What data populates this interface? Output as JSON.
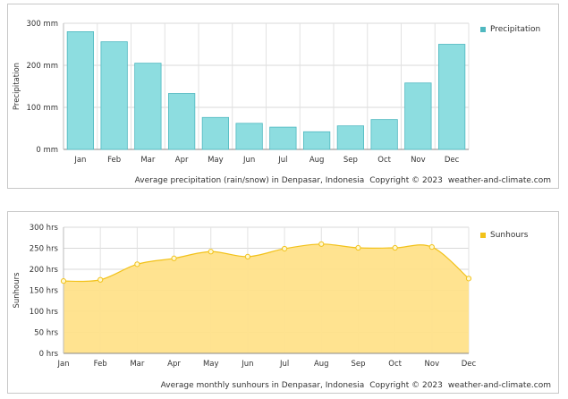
{
  "chart_data": [
    {
      "type": "bar",
      "categories": [
        "Jan",
        "Feb",
        "Mar",
        "Apr",
        "May",
        "Jun",
        "Jul",
        "Aug",
        "Sep",
        "Oct",
        "Nov",
        "Dec"
      ],
      "series": [
        {
          "name": "Precipitation",
          "values": [
            280,
            256,
            205,
            133,
            76,
            62,
            53,
            42,
            56,
            71,
            158,
            250
          ]
        }
      ],
      "ylabel": "Precipitation",
      "ylim": [
        0,
        300
      ],
      "yticks": [
        "0 mm",
        "100 mm",
        "200 mm",
        "300 mm"
      ],
      "ytick_values": [
        0,
        100,
        200,
        300
      ],
      "caption": "Average precipitation (rain/snow) in Denpasar, Indonesia",
      "copyright": "Copyright © 2023",
      "site": "weather-and-climate.com",
      "legend_position": "top-right",
      "color": "#8ddde0",
      "stroke": "#4fb8c0",
      "grid": true
    },
    {
      "type": "area",
      "categories": [
        "Jan",
        "Feb",
        "Mar",
        "Apr",
        "May",
        "Jun",
        "Jul",
        "Aug",
        "Sep",
        "Oct",
        "Nov",
        "Dec"
      ],
      "series": [
        {
          "name": "Sunhours",
          "values": [
            172,
            175,
            212,
            226,
            242,
            230,
            249,
            260,
            251,
            251,
            253,
            178
          ]
        }
      ],
      "ylabel": "Sunhours",
      "ylim": [
        0,
        300
      ],
      "yticks": [
        "0 hrs",
        "50 hrs",
        "100 hrs",
        "150 hrs",
        "200 hrs",
        "250 hrs",
        "300 hrs"
      ],
      "ytick_values": [
        0,
        50,
        100,
        150,
        200,
        250,
        300
      ],
      "caption": "Average monthly sunhours in Denpasar, Indonesia",
      "copyright": "Copyright © 2023",
      "site": "weather-and-climate.com",
      "legend_position": "top-right",
      "color": "#ffe28a",
      "stroke": "#f2c21a",
      "grid": true
    }
  ]
}
